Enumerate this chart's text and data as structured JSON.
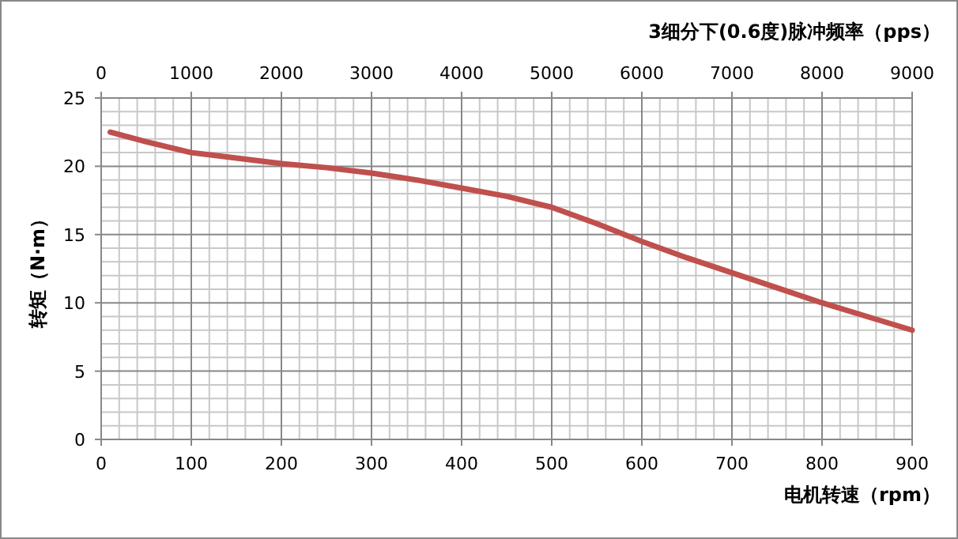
{
  "chart_data": {
    "type": "line",
    "x2label": "3细分下(0.6度)脉冲频率（pps）",
    "xlabel": "电机转速（rpm）",
    "ylabel": "转矩（N·m）",
    "x": [
      10,
      50,
      100,
      150,
      200,
      250,
      300,
      350,
      400,
      450,
      500,
      550,
      600,
      650,
      700,
      750,
      800,
      850,
      900
    ],
    "series": [
      {
        "color": "#c0504d",
        "values": [
          22.5,
          21.8,
          21.0,
          20.6,
          20.2,
          19.9,
          19.5,
          19.0,
          18.4,
          17.8,
          17.0,
          15.8,
          14.5,
          13.3,
          12.2,
          11.1,
          10.0,
          9.0,
          8.0
        ]
      }
    ],
    "xlim": [
      0,
      900
    ],
    "xticks": [
      0,
      100,
      200,
      300,
      400,
      500,
      600,
      700,
      800,
      900
    ],
    "x2lim": [
      0,
      9000
    ],
    "x2ticks": [
      0,
      1000,
      2000,
      3000,
      4000,
      5000,
      6000,
      7000,
      8000,
      9000
    ],
    "ylim": [
      0,
      25
    ],
    "yticks": [
      0,
      5,
      10,
      15,
      20,
      25
    ],
    "grid": true,
    "marker": "none",
    "line_style": "solid"
  }
}
